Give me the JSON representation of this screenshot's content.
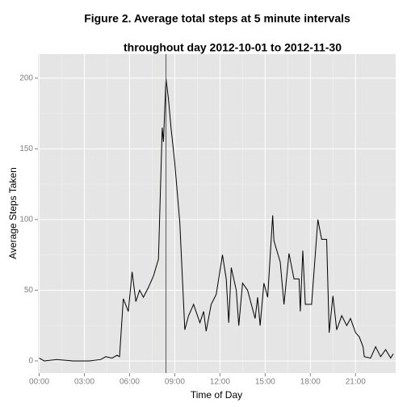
{
  "chart_data": {
    "type": "line",
    "title": [
      "Figure 2. Average total steps at 5 minute intervals",
      "throughout day 2012-10-01 to 2012-11-30"
    ],
    "x_label": "Time of Day",
    "y_label": "Average Steps Taken",
    "x": [
      0,
      20,
      70,
      135,
      200,
      245,
      265,
      290,
      310,
      320,
      335,
      355,
      370,
      385,
      400,
      415,
      435,
      455,
      475,
      490,
      495,
      505,
      515,
      525,
      540,
      560,
      580,
      595,
      615,
      640,
      655,
      665,
      685,
      705,
      730,
      745,
      755,
      765,
      785,
      795,
      810,
      830,
      845,
      860,
      870,
      880,
      895,
      910,
      930,
      935,
      960,
      975,
      995,
      1015,
      1035,
      1040,
      1050,
      1060,
      1085,
      1110,
      1125,
      1145,
      1155,
      1170,
      1185,
      1205,
      1225,
      1240,
      1260,
      1275,
      1290,
      1295,
      1320,
      1340,
      1360,
      1380,
      1400,
      1410
    ],
    "series": [
      {
        "name": "steps",
        "color": "#000000",
        "values": [
          2,
          0,
          1,
          0,
          0,
          1,
          3,
          2,
          4,
          3,
          44,
          35,
          63,
          42,
          50,
          45,
          52,
          60,
          72,
          165,
          155,
          200,
          185,
          165,
          140,
          98,
          22,
          32,
          40,
          27,
          35,
          21,
          40,
          47,
          75,
          58,
          27,
          66,
          50,
          25,
          55,
          50,
          40,
          30,
          45,
          25,
          55,
          45,
          103,
          85,
          70,
          40,
          76,
          58,
          58,
          35,
          78,
          40,
          40,
          100,
          86,
          86,
          20,
          46,
          22,
          32,
          25,
          30,
          20,
          17,
          10,
          3,
          2,
          10,
          3,
          8,
          2,
          5
        ]
      }
    ],
    "vline_x": 505,
    "vline_color": "#2c5d9e",
    "xlim": [
      -5,
      1420
    ],
    "xticks": [
      {
        "value": 0,
        "label": "00:00"
      },
      {
        "value": 180,
        "label": "03:00"
      },
      {
        "value": 360,
        "label": "06:00"
      },
      {
        "value": 540,
        "label": "09:00"
      },
      {
        "value": 720,
        "label": "12:00"
      },
      {
        "value": 900,
        "label": "15:00"
      },
      {
        "value": 1080,
        "label": "18:00"
      },
      {
        "value": 1260,
        "label": "21:00"
      }
    ],
    "ylim": [
      -8.6,
      217
    ],
    "yticks": [
      0,
      50,
      100,
      150,
      200
    ],
    "grid": true
  }
}
